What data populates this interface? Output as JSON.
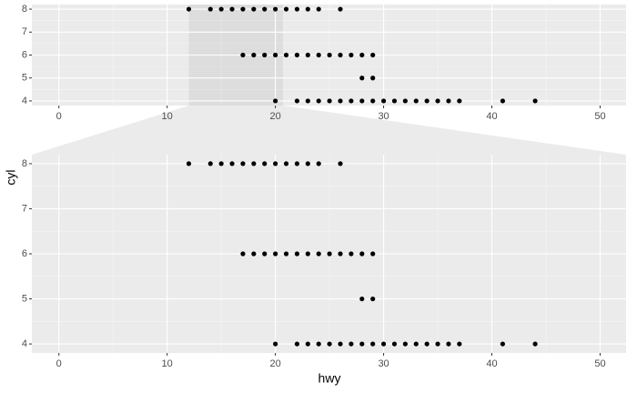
{
  "chart_data": {
    "type": "scatter",
    "x_label": "hwy",
    "y_label": "cyl",
    "x": [
      12,
      14,
      15,
      16,
      17,
      18,
      19,
      20,
      21,
      22,
      23,
      24,
      26,
      17,
      18,
      19,
      20,
      21,
      22,
      23,
      24,
      25,
      26,
      27,
      28,
      29,
      28,
      29,
      20,
      22,
      23,
      24,
      25,
      26,
      27,
      28,
      29,
      30,
      31,
      32,
      33,
      34,
      35,
      36,
      37,
      41,
      44
    ],
    "values": [
      8,
      8,
      8,
      8,
      8,
      8,
      8,
      8,
      8,
      8,
      8,
      8,
      8,
      6,
      6,
      6,
      6,
      6,
      6,
      6,
      6,
      6,
      6,
      6,
      6,
      6,
      5,
      5,
      4,
      4,
      4,
      4,
      4,
      4,
      4,
      4,
      4,
      4,
      4,
      4,
      4,
      4,
      4,
      4,
      4,
      4,
      4
    ],
    "color": "#000000",
    "xlim": [
      -2.5,
      52.4
    ],
    "ylim": [
      3.8,
      8.2
    ],
    "xticks": [
      0,
      10,
      20,
      30,
      40,
      50
    ],
    "yticks": [
      4,
      5,
      6,
      7,
      8
    ],
    "zoom_xlim": [
      12,
      20.7
    ],
    "grid": true,
    "minor_grid": true
  }
}
